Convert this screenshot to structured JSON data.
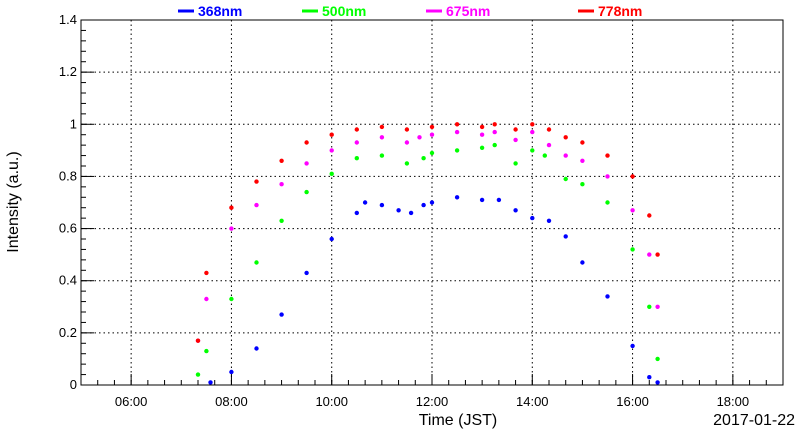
{
  "chart_data": {
    "type": "scatter",
    "xlabel": "Time (JST)",
    "ylabel": "Intensity (a.u.)",
    "date_label": "2017-01-22",
    "xlim": [
      "05:00",
      "19:00"
    ],
    "ylim": [
      0,
      1.4
    ],
    "grid": true,
    "legend_position": "top",
    "x_ticks": [
      "06:00",
      "08:00",
      "10:00",
      "12:00",
      "14:00",
      "16:00",
      "18:00"
    ],
    "y_ticks": [
      "0",
      "0.2",
      "0.4",
      "0.6",
      "0.8",
      "1",
      "1.2",
      "1.4"
    ],
    "series": [
      {
        "name": "368nm",
        "color": "#0000ff",
        "points": [
          [
            "07:35",
            0.01
          ],
          [
            "08:00",
            0.05
          ],
          [
            "08:30",
            0.14
          ],
          [
            "09:00",
            0.27
          ],
          [
            "09:30",
            0.43
          ],
          [
            "10:00",
            0.56
          ],
          [
            "10:30",
            0.66
          ],
          [
            "10:40",
            0.7
          ],
          [
            "11:00",
            0.69
          ],
          [
            "11:20",
            0.67
          ],
          [
            "11:35",
            0.66
          ],
          [
            "11:50",
            0.69
          ],
          [
            "12:00",
            0.7
          ],
          [
            "12:30",
            0.72
          ],
          [
            "13:00",
            0.71
          ],
          [
            "13:20",
            0.71
          ],
          [
            "13:40",
            0.67
          ],
          [
            "14:00",
            0.64
          ],
          [
            "14:20",
            0.63
          ],
          [
            "14:40",
            0.57
          ],
          [
            "15:00",
            0.47
          ],
          [
            "15:30",
            0.34
          ],
          [
            "16:00",
            0.15
          ],
          [
            "16:20",
            0.03
          ],
          [
            "16:30",
            0.01
          ]
        ]
      },
      {
        "name": "500nm",
        "color": "#00ff00",
        "points": [
          [
            "07:20",
            0.04
          ],
          [
            "07:30",
            0.13
          ],
          [
            "08:00",
            0.33
          ],
          [
            "08:30",
            0.47
          ],
          [
            "09:00",
            0.63
          ],
          [
            "09:30",
            0.74
          ],
          [
            "10:00",
            0.81
          ],
          [
            "10:30",
            0.87
          ],
          [
            "11:00",
            0.88
          ],
          [
            "11:30",
            0.85
          ],
          [
            "11:50",
            0.87
          ],
          [
            "12:00",
            0.89
          ],
          [
            "12:30",
            0.9
          ],
          [
            "13:00",
            0.91
          ],
          [
            "13:15",
            0.92
          ],
          [
            "13:40",
            0.85
          ],
          [
            "14:00",
            0.9
          ],
          [
            "14:15",
            0.88
          ],
          [
            "14:40",
            0.79
          ],
          [
            "15:00",
            0.77
          ],
          [
            "15:30",
            0.7
          ],
          [
            "16:00",
            0.52
          ],
          [
            "16:20",
            0.3
          ],
          [
            "16:30",
            0.1
          ]
        ]
      },
      {
        "name": "675nm",
        "color": "#ff00ff",
        "points": [
          [
            "07:20",
            0.17
          ],
          [
            "07:30",
            0.33
          ],
          [
            "08:00",
            0.6
          ],
          [
            "08:30",
            0.69
          ],
          [
            "09:00",
            0.77
          ],
          [
            "09:30",
            0.85
          ],
          [
            "10:00",
            0.9
          ],
          [
            "10:30",
            0.93
          ],
          [
            "11:00",
            0.95
          ],
          [
            "11:30",
            0.93
          ],
          [
            "11:45",
            0.95
          ],
          [
            "12:00",
            0.96
          ],
          [
            "12:30",
            0.97
          ],
          [
            "13:00",
            0.96
          ],
          [
            "13:15",
            0.97
          ],
          [
            "13:40",
            0.94
          ],
          [
            "14:00",
            0.97
          ],
          [
            "14:20",
            0.92
          ],
          [
            "14:40",
            0.88
          ],
          [
            "15:00",
            0.86
          ],
          [
            "15:30",
            0.8
          ],
          [
            "16:00",
            0.67
          ],
          [
            "16:20",
            0.5
          ],
          [
            "16:30",
            0.3
          ]
        ]
      },
      {
        "name": "778nm",
        "color": "#ff0000",
        "points": [
          [
            "07:20",
            0.17
          ],
          [
            "07:30",
            0.43
          ],
          [
            "08:00",
            0.68
          ],
          [
            "08:30",
            0.78
          ],
          [
            "09:00",
            0.86
          ],
          [
            "09:30",
            0.93
          ],
          [
            "10:00",
            0.96
          ],
          [
            "10:30",
            0.98
          ],
          [
            "11:00",
            0.99
          ],
          [
            "11:30",
            0.98
          ],
          [
            "12:00",
            0.99
          ],
          [
            "12:30",
            1.0
          ],
          [
            "13:00",
            0.99
          ],
          [
            "13:15",
            1.0
          ],
          [
            "13:40",
            0.98
          ],
          [
            "14:00",
            1.0
          ],
          [
            "14:20",
            0.98
          ],
          [
            "14:40",
            0.95
          ],
          [
            "15:00",
            0.93
          ],
          [
            "15:30",
            0.88
          ],
          [
            "16:00",
            0.8
          ],
          [
            "16:20",
            0.65
          ],
          [
            "16:30",
            0.5
          ]
        ]
      }
    ]
  }
}
